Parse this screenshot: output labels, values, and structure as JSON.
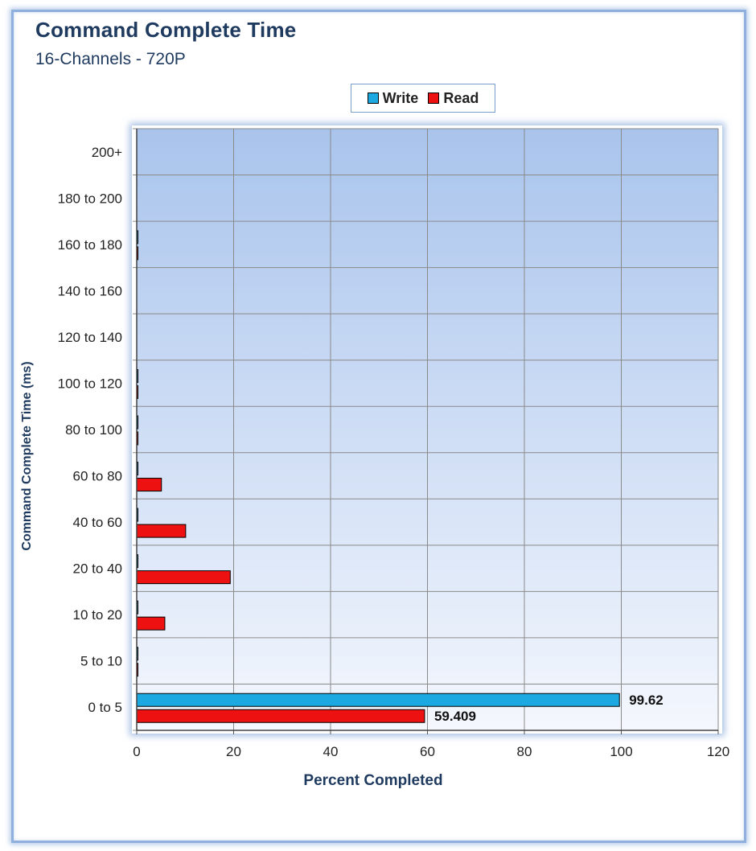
{
  "chart_data": {
    "type": "bar",
    "orientation": "horizontal",
    "title": "Command Complete Time",
    "subtitle": "16-Channels - 720P",
    "xlabel": "Percent Completed",
    "ylabel": "Command Complete Time (ms)",
    "categories": [
      "0 to 5",
      "5 to 10",
      "10 to 20",
      "20 to 40",
      "40 to 60",
      "60 to 80",
      "80 to 100",
      "100 to 120",
      "120 to 140",
      "140 to 160",
      "160 to 180",
      "180 to 200",
      "200+"
    ],
    "series": [
      {
        "name": "Write",
        "color": "#1ca8e0",
        "values": [
          99.62,
          0.1,
          0.1,
          0.1,
          0.1,
          0.1,
          0.05,
          0.02,
          0,
          0,
          0.01,
          0,
          0
        ]
      },
      {
        "name": "Read",
        "color": "#ee1111",
        "values": [
          59.409,
          0.1,
          5.8,
          19.3,
          10.1,
          5.1,
          0.1,
          0.1,
          0,
          0,
          0.2,
          0,
          0
        ]
      }
    ],
    "data_labels": [
      {
        "category": "0 to 5",
        "series": "Write",
        "text": "99.62"
      },
      {
        "category": "0 to 5",
        "series": "Read",
        "text": "59.409"
      }
    ],
    "xlim": [
      0,
      120
    ],
    "xticks": [
      "0",
      "20",
      "40",
      "60",
      "80",
      "100",
      "120"
    ],
    "grid": true,
    "legend_position": "top-center"
  },
  "legend": {
    "write_label": "Write",
    "read_label": "Read"
  }
}
